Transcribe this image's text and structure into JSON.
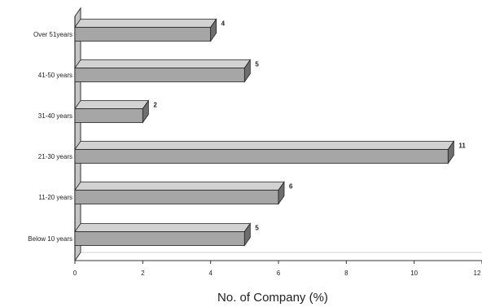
{
  "chart_data": {
    "type": "bar",
    "orientation": "horizontal",
    "style": "3d",
    "categories": [
      "Over 51years",
      "41-50 years",
      "31-40 years",
      "21-30 years",
      "11-20 years",
      "Below 10 years"
    ],
    "values": [
      4,
      5,
      2,
      11,
      6,
      5
    ],
    "value_labels": [
      "4",
      "5",
      "2",
      "11",
      "6",
      "5"
    ],
    "title": "",
    "xlabel": "No. of Company (%)",
    "ylabel": "",
    "xlim": [
      0,
      12
    ],
    "xticks": [
      0,
      2,
      4,
      6,
      8,
      10,
      12
    ],
    "xtick_labels": [
      "0",
      "2",
      "4",
      "6",
      "8",
      "10",
      "12"
    ],
    "grid": false,
    "legend": "none",
    "colors": {
      "bar_face": "#a6a6a6",
      "bar_top": "#d2d2d2",
      "bar_side": "#6e6e6e",
      "wall": "#c4c4c4",
      "wall_side": "#9a9a9a",
      "axis": "#333333"
    }
  }
}
